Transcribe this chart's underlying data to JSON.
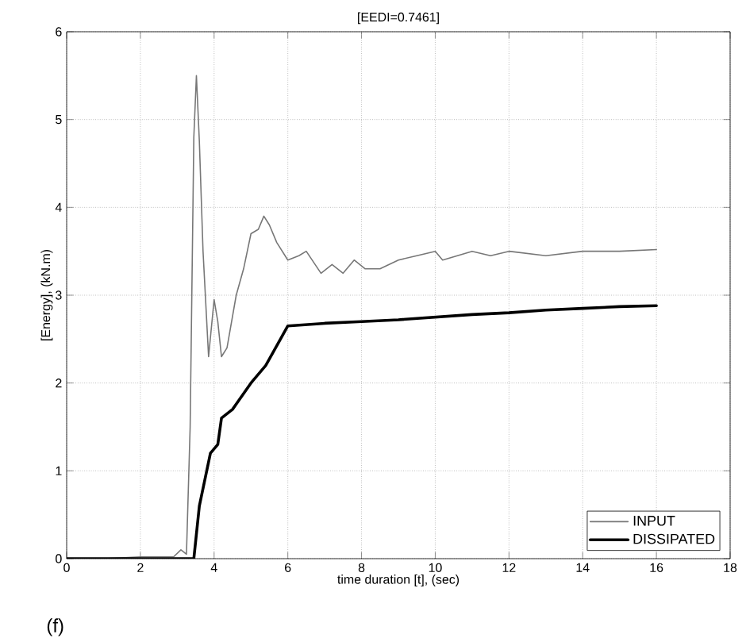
{
  "chart_data": {
    "type": "line",
    "title": "[EEDI=0.7461]",
    "xlabel": "time duration [t], (sec)",
    "ylabel": "[Energy], (kN.m)",
    "annotations": [
      "(f)"
    ],
    "xlim": [
      0,
      18
    ],
    "ylim": [
      0,
      6
    ],
    "xticks": [
      0,
      2,
      4,
      6,
      8,
      10,
      12,
      14,
      16,
      18
    ],
    "yticks": [
      0,
      1,
      2,
      3,
      4,
      5,
      6
    ],
    "grid": true,
    "legend": "bottom right",
    "marker": "none",
    "line_style": "solid",
    "series": [
      {
        "name": "INPUT",
        "color": "#777777",
        "x": [
          0,
          1,
          2,
          2.9,
          3.1,
          3.25,
          3.35,
          3.45,
          3.52,
          3.6,
          3.7,
          3.85,
          4.0,
          4.1,
          4.2,
          4.35,
          4.6,
          4.8,
          5.0,
          5.2,
          5.35,
          5.5,
          5.7,
          6.0,
          6.3,
          6.5,
          6.9,
          7.2,
          7.5,
          7.8,
          8.1,
          8.5,
          9.0,
          9.5,
          10.0,
          10.2,
          11.0,
          11.5,
          12.0,
          13.0,
          14.0,
          15.0,
          16.0
        ],
        "values": [
          0,
          0,
          0.02,
          0.02,
          0.1,
          0.05,
          1.5,
          4.8,
          5.5,
          4.75,
          3.5,
          2.3,
          2.95,
          2.7,
          2.3,
          2.4,
          3.0,
          3.3,
          3.7,
          3.75,
          3.9,
          3.8,
          3.6,
          3.4,
          3.45,
          3.5,
          3.25,
          3.35,
          3.25,
          3.4,
          3.3,
          3.3,
          3.4,
          3.45,
          3.5,
          3.4,
          3.5,
          3.45,
          3.5,
          3.45,
          3.5,
          3.5,
          3.52
        ]
      },
      {
        "name": "DISSIPATED",
        "color": "#000000",
        "x": [
          0,
          3.45,
          3.6,
          3.75,
          3.9,
          4.1,
          4.2,
          4.5,
          5.0,
          5.4,
          5.8,
          6.0,
          7.0,
          8.0,
          9.0,
          10.0,
          11.0,
          12.0,
          13.0,
          14.0,
          15.0,
          16.0
        ],
        "values": [
          0,
          0,
          0.6,
          0.9,
          1.2,
          1.3,
          1.6,
          1.7,
          2.0,
          2.2,
          2.5,
          2.65,
          2.68,
          2.7,
          2.72,
          2.75,
          2.78,
          2.8,
          2.83,
          2.85,
          2.87,
          2.88
        ]
      }
    ]
  }
}
